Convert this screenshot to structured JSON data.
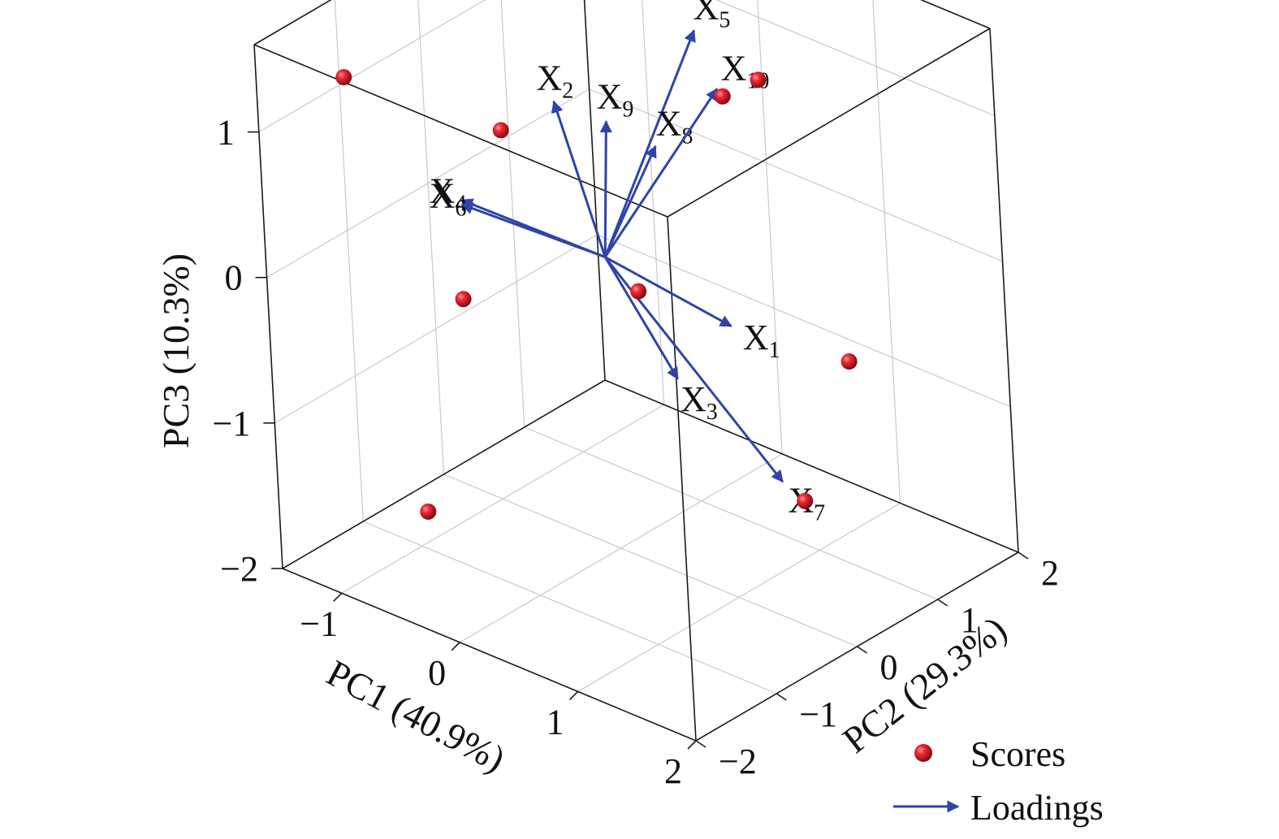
{
  "chart_data": {
    "type": "scatter",
    "subtype": "3d-biplot",
    "axes": {
      "x": {
        "label": "PC1 (40.9%)",
        "ticks": [
          "−1",
          "0",
          "1",
          "2"
        ],
        "range": [
          -1.5,
          2
        ]
      },
      "y": {
        "label": "PC2 (29.3%)",
        "ticks": [
          "−2",
          "−1",
          "0",
          "1",
          "2"
        ],
        "range": [
          -2,
          2
        ]
      },
      "z": {
        "label": "PC3 (10.3%)",
        "ticks": [
          "−2",
          "−1",
          "0",
          "1"
        ],
        "range": [
          -2,
          1.6
        ]
      }
    },
    "grid": true,
    "legend": {
      "placement": "bottom-right",
      "items": [
        {
          "label": "Scores",
          "marker": "sphere",
          "color": "#e0192a"
        },
        {
          "label": "Loadings",
          "marker": "arrow",
          "color": "#2e44a8"
        }
      ]
    },
    "series": [
      {
        "name": "Scores",
        "color": "#e0192a",
        "points": [
          {
            "pc1": -1.1,
            "pc2": -1.5,
            "pc3": 1.35
          },
          {
            "pc1": -0.7,
            "pc2": -0.2,
            "pc3": 0.7
          },
          {
            "pc1": 0.4,
            "pc2": 1.4,
            "pc3": 0.9
          },
          {
            "pc1": 0.3,
            "pc2": 1.1,
            "pc3": 0.85
          },
          {
            "pc1": -0.6,
            "pc2": -0.9,
            "pc3": -0.2
          },
          {
            "pc1": 0.2,
            "pc2": 0.1,
            "pc3": -0.2
          },
          {
            "pc1": 1.2,
            "pc2": 1.2,
            "pc3": -0.7
          },
          {
            "pc1": 1.4,
            "pc2": 0.3,
            "pc3": -1.3
          },
          {
            "pc1": -0.5,
            "pc2": -1.6,
            "pc3": -1.4
          }
        ]
      },
      {
        "name": "Loadings",
        "color": "#2e44a8",
        "vectors": [
          {
            "label": "X",
            "sub": "1",
            "pc1": 0.7,
            "pc2": 0.5,
            "pc3": -0.4
          },
          {
            "label": "X",
            "sub": "2",
            "pc1": -0.3,
            "pc2": -0.1,
            "pc3": 1.0
          },
          {
            "label": "X",
            "sub": "3",
            "pc1": 0.5,
            "pc2": 0.1,
            "pc3": -0.7
          },
          {
            "label": "X",
            "sub": "4",
            "pc1": -1.0,
            "pc2": -0.3,
            "pc3": 0.15
          },
          {
            "label": "X",
            "sub": "5",
            "pc1": 0.3,
            "pc2": 0.8,
            "pc3": 1.4
          },
          {
            "label": "X",
            "sub": "6",
            "pc1": -1.0,
            "pc2": -0.3,
            "pc3": 0.12
          },
          {
            "label": "X",
            "sub": "7",
            "pc1": 1.0,
            "pc2": 0.6,
            "pc3": -1.4
          },
          {
            "label": "X",
            "sub": "8",
            "pc1": 0.2,
            "pc2": 0.4,
            "pc3": 0.7
          },
          {
            "label": "X",
            "sub": "9",
            "pc1": 0.0,
            "pc2": 0.1,
            "pc3": 0.9
          },
          {
            "label": "X",
            "sub": "10",
            "pc1": 0.4,
            "pc2": 0.9,
            "pc3": 1.0
          }
        ]
      }
    ]
  }
}
